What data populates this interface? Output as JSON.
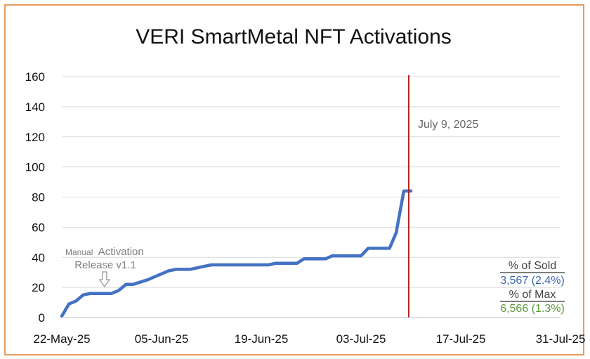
{
  "chart_data": {
    "type": "line",
    "title": "VERI SmartMetal NFT Activations",
    "xlabel": "",
    "ylabel": "",
    "ylim": [
      0,
      160
    ],
    "yticks": [
      0,
      20,
      40,
      60,
      80,
      100,
      120,
      140,
      160
    ],
    "xlim": [
      "2025-05-22",
      "2025-07-31"
    ],
    "xtick_labels": [
      "22-May-25",
      "05-Jun-25",
      "19-Jun-25",
      "03-Jul-25",
      "17-Jul-25",
      "31-Jul-25"
    ],
    "xtick_dates": [
      "2025-05-22",
      "2025-06-05",
      "2025-06-19",
      "2025-07-03",
      "2025-07-17",
      "2025-07-31"
    ],
    "grid": true,
    "line_color": "#4472c4",
    "series": [
      {
        "name": "",
        "points": [
          [
            "2025-05-22",
            1
          ],
          [
            "2025-05-23",
            9
          ],
          [
            "2025-05-24",
            11
          ],
          [
            "2025-05-25",
            15
          ],
          [
            "2025-05-26",
            16
          ],
          [
            "2025-05-29",
            16
          ],
          [
            "2025-05-30",
            18
          ],
          [
            "2025-05-31",
            22
          ],
          [
            "2025-06-01",
            22
          ],
          [
            "2025-06-03",
            25
          ],
          [
            "2025-06-05",
            29
          ],
          [
            "2025-06-06",
            31
          ],
          [
            "2025-06-07",
            32
          ],
          [
            "2025-06-09",
            32
          ],
          [
            "2025-06-11",
            34
          ],
          [
            "2025-06-12",
            35
          ],
          [
            "2025-06-20",
            35
          ],
          [
            "2025-06-21",
            36
          ],
          [
            "2025-06-24",
            36
          ],
          [
            "2025-06-25",
            39
          ],
          [
            "2025-06-28",
            39
          ],
          [
            "2025-06-29",
            41
          ],
          [
            "2025-07-03",
            41
          ],
          [
            "2025-07-04",
            46
          ],
          [
            "2025-07-07",
            46
          ],
          [
            "2025-07-08",
            57
          ],
          [
            "2025-07-08",
            58
          ],
          [
            "2025-07-09",
            84
          ],
          [
            "2025-07-10",
            84
          ]
        ]
      }
    ],
    "marker": {
      "date": "2025-07-10",
      "label": "July 9, 2025",
      "color": "#b22222"
    },
    "annotations": [
      {
        "line1": "Manual",
        "line1b": "Activation",
        "line2": "Release v1.1",
        "date": "2025-05-28"
      }
    ],
    "stats": {
      "sold_label": "% of Sold",
      "sold_value": "3,567 (2.4%)",
      "max_label": "% of Max",
      "max_value": "6,566 (1.3%)"
    }
  }
}
